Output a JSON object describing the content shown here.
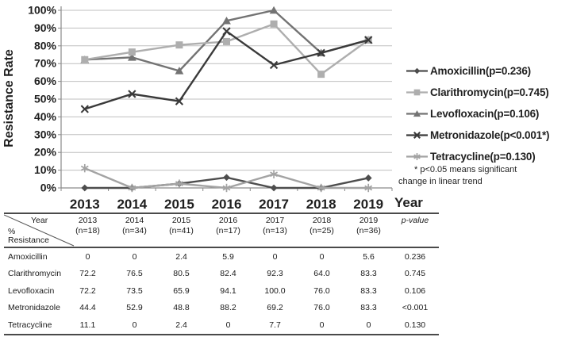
{
  "chart_data": {
    "type": "line",
    "title": "",
    "ylabel": "Resistance Rate",
    "xlabel": "Year",
    "categories": [
      "2013",
      "2014",
      "2015",
      "2016",
      "2017",
      "2018",
      "2019"
    ],
    "ylim": [
      0,
      100
    ],
    "ytick_step": 10,
    "ytick_suffix": "%",
    "grid": true,
    "legend_position": "right",
    "series": [
      {
        "name": "Amoxicillin(p=0.236)",
        "marker": "diamond",
        "color": "#4d4d4d",
        "values": [
          0,
          0,
          2.4,
          5.9,
          0,
          0,
          5.6
        ]
      },
      {
        "name": "Clarithromycin(p=0.745)",
        "marker": "square",
        "color": "#aeaeae",
        "values": [
          72.2,
          76.5,
          80.5,
          82.4,
          92.3,
          64.0,
          83.3
        ]
      },
      {
        "name": "Levofloxacin(p=0.106)",
        "marker": "triangle",
        "color": "#737373",
        "values": [
          72.2,
          73.5,
          65.9,
          94.1,
          100.0,
          76.0,
          83.3
        ]
      },
      {
        "name": "Metronidazole(p<0.001*)",
        "marker": "x",
        "color": "#3a3a3a",
        "values": [
          44.4,
          52.9,
          48.8,
          88.2,
          69.2,
          76.0,
          83.3
        ]
      },
      {
        "name": "Tetracycline(p=0.130)",
        "marker": "star",
        "color": "#a3a3a3",
        "values": [
          11.1,
          0,
          2.4,
          0,
          7.7,
          0,
          0
        ]
      }
    ],
    "footnote_line1": "* p<0.05 means significant",
    "footnote_line2": "change in linear trend",
    "colors": {
      "gridline": "#bfbfbf",
      "axis": "#8a8a8a",
      "text": "#1f1f1f"
    }
  },
  "table": {
    "corner": {
      "top_right": "Year",
      "bottom_left_line1": "%",
      "bottom_left_line2": "Resistance"
    },
    "columns": [
      {
        "year": "2013",
        "n": "(n=18)"
      },
      {
        "year": "2014",
        "n": "(n=34)"
      },
      {
        "year": "2015",
        "n": "(n=41)"
      },
      {
        "year": "2016",
        "n": "(n=17)"
      },
      {
        "year": "2017",
        "n": "(n=13)"
      },
      {
        "year": "2018",
        "n": "(n=25)"
      },
      {
        "year": "2019",
        "n": "(n=36)"
      }
    ],
    "pvalue_header": "p-value",
    "rows": [
      {
        "label": "Amoxicillin",
        "values": [
          "0",
          "0",
          "2.4",
          "5.9",
          "0",
          "0",
          "5.6"
        ],
        "p": "0.236"
      },
      {
        "label": "Clarithromycin",
        "values": [
          "72.2",
          "76.5",
          "80.5",
          "82.4",
          "92.3",
          "64.0",
          "83.3"
        ],
        "p": "0.745"
      },
      {
        "label": "Levofloxacin",
        "values": [
          "72.2",
          "73.5",
          "65.9",
          "94.1",
          "100.0",
          "76.0",
          "83.3"
        ],
        "p": "0.106"
      },
      {
        "label": "Metronidazole",
        "values": [
          "44.4",
          "52.9",
          "48.8",
          "88.2",
          "69.2",
          "76.0",
          "83.3"
        ],
        "p": "<0.001"
      },
      {
        "label": "Tetracycline",
        "values": [
          "11.1",
          "0",
          "2.4",
          "0",
          "7.7",
          "0",
          "0"
        ],
        "p": "0.130"
      }
    ]
  }
}
